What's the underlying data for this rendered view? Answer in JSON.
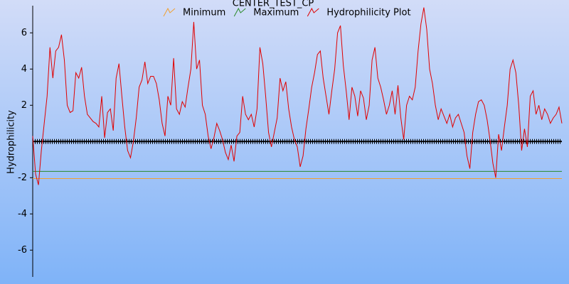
{
  "chart_data": {
    "type": "line",
    "title": "CENTER_TEST_CP",
    "y_label": "Hydrophilicity",
    "ylim": [
      -7.4,
      7.5
    ],
    "yticks": [
      -6,
      -4,
      -2,
      2,
      4,
      6
    ],
    "reference_lines": [
      {
        "name": "Minimum",
        "color": "#f0a030",
        "value": -2.05
      },
      {
        "name": "Maximum",
        "color": "#2a8a2a",
        "value": -1.65
      }
    ],
    "series": [
      {
        "name": "Hydrophilicity Plot",
        "color": "#e00000",
        "values": [
          0.3,
          -1.8,
          -2.4,
          -0.5,
          1,
          2.5,
          5.2,
          3.5,
          5,
          5.2,
          5.9,
          4.5,
          2,
          1.6,
          1.7,
          3.8,
          3.5,
          4.1,
          2.5,
          1.5,
          1.3,
          1.1,
          1,
          0.8,
          2.5,
          0.2,
          1.6,
          1.8,
          0.6,
          3.5,
          4.3,
          2.5,
          0.8,
          -0.5,
          -0.9,
          0,
          1.3,
          3,
          3.4,
          4.4,
          3.2,
          3.6,
          3.6,
          3.2,
          2.3,
          1,
          0.3,
          2.5,
          2,
          4.6,
          1.8,
          1.5,
          2.2,
          1.9,
          3,
          4,
          6.6,
          4,
          4.5,
          2,
          1.5,
          0.3,
          -0.4,
          0.2,
          1,
          0.6,
          0.1,
          -0.6,
          -1,
          -0.2,
          -1.1,
          0.3,
          0.5,
          2.5,
          1.5,
          1.2,
          1.5,
          0.8,
          1.8,
          5.2,
          4.3,
          2.5,
          0.5,
          -0.3,
          0.5,
          1.3,
          3.5,
          2.8,
          3.3,
          1.8,
          0.8,
          0.1,
          -0.3,
          -1.4,
          -0.8,
          0.7,
          1.8,
          3,
          3.8,
          4.8,
          5,
          3.5,
          2.5,
          1.5,
          2.8,
          4,
          6,
          6.4,
          4.2,
          2.8,
          1.2,
          3,
          2.5,
          1.4,
          2.8,
          2.4,
          1.2,
          2,
          4.5,
          5.2,
          3.5,
          3,
          2.3,
          1.5,
          2,
          2.8,
          1.5,
          3.1,
          1.3,
          0.1,
          2,
          2.5,
          2.3,
          3,
          5,
          6.5,
          7.4,
          6.2,
          4,
          3.2,
          2,
          1.2,
          1.8,
          1.4,
          1,
          1.5,
          0.8,
          1.3,
          1.5,
          1,
          0.5,
          -0.8,
          -1.5,
          0.5,
          1.5,
          2.2,
          2.3,
          2,
          1.2,
          0.1,
          -1.2,
          -2,
          0.4,
          -0.5,
          0.8,
          2,
          4,
          4.5,
          3.8,
          2,
          -0.5,
          0.7,
          -0.3,
          2.5,
          2.8,
          1.5,
          2,
          1.2,
          1.8,
          1.5,
          1,
          1.3,
          1.5,
          1.9,
          1
        ]
      }
    ]
  }
}
